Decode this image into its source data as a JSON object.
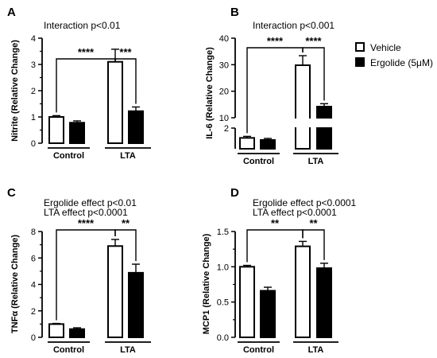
{
  "legend": {
    "entries": [
      {
        "label": "Vehicle",
        "color": "#ffffff"
      },
      {
        "label": "Ergolide (5μM)",
        "color": "#000000"
      }
    ]
  },
  "chart_data": [
    {
      "type": "bar",
      "panel_letter": "A",
      "annotations": [
        "Interaction p<0.01"
      ],
      "ylabel": "Nitrite (Relative Change)",
      "groups": [
        "Control",
        "LTA"
      ],
      "series": [
        {
          "name": "Vehicle",
          "values": [
            1.0,
            3.1
          ],
          "errors": [
            0.05,
            0.48
          ]
        },
        {
          "name": "Ergolide (5μM)",
          "values": [
            0.78,
            1.22
          ],
          "errors": [
            0.07,
            0.16
          ]
        }
      ],
      "ylim": [
        0,
        4
      ],
      "yticks": [
        "0",
        "1",
        "2",
        "3",
        "4"
      ],
      "significance": [
        "****",
        "***"
      ]
    },
    {
      "type": "bar",
      "panel_letter": "B",
      "annotations": [
        "Interaction p<0.001"
      ],
      "ylabel": "IL-6 (Relative Change)",
      "groups": [
        "Control",
        "LTA"
      ],
      "series": [
        {
          "name": "Vehicle",
          "values": [
            1.05,
            29.8
          ],
          "errors": [
            0.15,
            3.6
          ]
        },
        {
          "name": "Ergolide (5μM)",
          "values": [
            0.85,
            14.2
          ],
          "errors": [
            0.15,
            1.1
          ]
        }
      ],
      "ylim": [
        0,
        40
      ],
      "axis_break": [
        2,
        10
      ],
      "yticks": [
        "2",
        "10",
        "20",
        "30",
        "40"
      ],
      "significance": [
        "****",
        "****"
      ]
    },
    {
      "type": "bar",
      "panel_letter": "C",
      "annotations": [
        "Ergolide effect p<0.01",
        "LTA effect p<0.0001"
      ],
      "ylabel": "TNFα (Relative Change)",
      "groups": [
        "Control",
        "LTA"
      ],
      "series": [
        {
          "name": "Vehicle",
          "values": [
            1.0,
            6.9
          ],
          "errors": [
            0.05,
            0.5
          ]
        },
        {
          "name": "Ergolide (5μM)",
          "values": [
            0.62,
            4.88
          ],
          "errors": [
            0.1,
            0.65
          ]
        }
      ],
      "ylim": [
        0,
        8
      ],
      "yticks": [
        "0",
        "2",
        "4",
        "6",
        "8"
      ],
      "significance": [
        "****",
        "**"
      ]
    },
    {
      "type": "bar",
      "panel_letter": "D",
      "annotations": [
        "Ergolide effect p<0.0001",
        "LTA effect p<0.0001"
      ],
      "ylabel": "MCP1 (Relative Change)",
      "groups": [
        "Control",
        "LTA"
      ],
      "series": [
        {
          "name": "Vehicle",
          "values": [
            1.0,
            1.29
          ],
          "errors": [
            0.02,
            0.07
          ]
        },
        {
          "name": "Ergolide (5μM)",
          "values": [
            0.66,
            0.98
          ],
          "errors": [
            0.05,
            0.07
          ]
        }
      ],
      "ylim": [
        0,
        1.5
      ],
      "yticks": [
        "0.0",
        "0.5",
        "1.0",
        "1.5"
      ],
      "significance": [
        "**",
        "**"
      ]
    }
  ]
}
